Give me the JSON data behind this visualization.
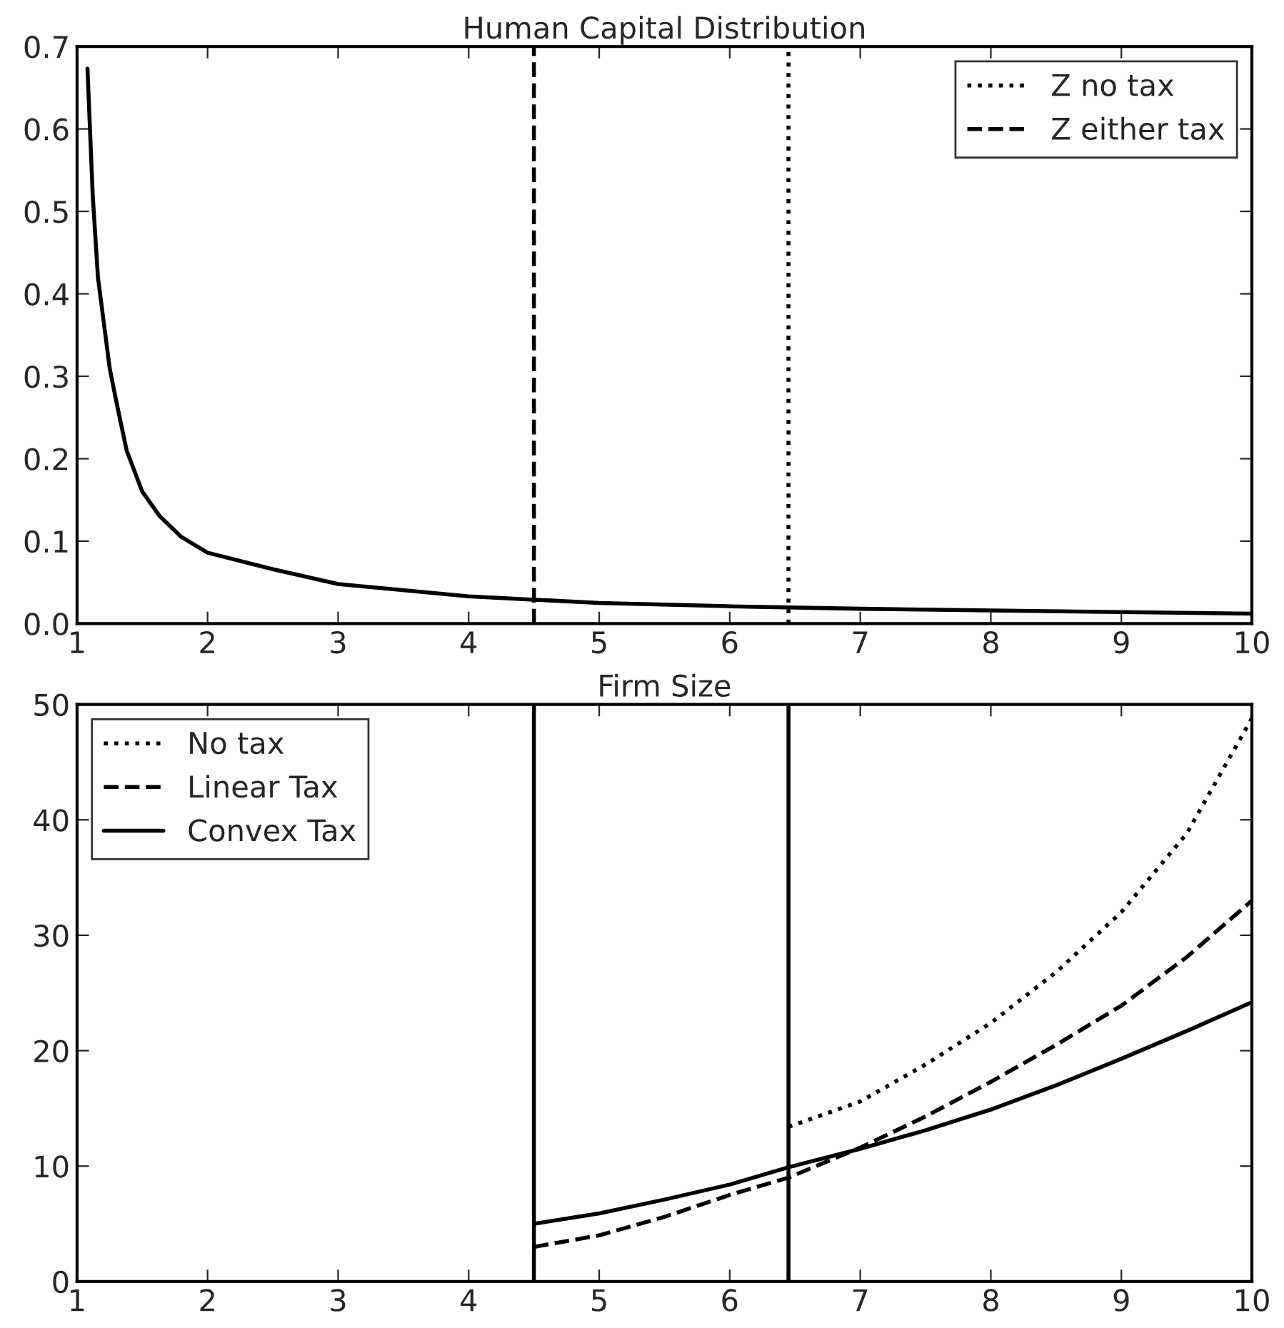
{
  "chart_data": [
    {
      "type": "line",
      "title": "Human Capital Distribution",
      "xlim": [
        1,
        10
      ],
      "ylim": [
        0,
        0.7
      ],
      "xticks": [
        1,
        2,
        3,
        4,
        5,
        6,
        7,
        8,
        9,
        10
      ],
      "yticks": [
        {
          "value": 0,
          "label": "0.0"
        },
        0.1,
        0.2,
        0.3,
        0.4,
        0.5,
        0.6,
        0.7
      ],
      "grid": false,
      "legend": "top right",
      "series": [
        {
          "color": "#000000",
          "line_style": "solid",
          "x": [
            1.08,
            1.12,
            1.16,
            1.25,
            1.3,
            1.38,
            1.5,
            1.63,
            1.8,
            2,
            2.5,
            3,
            4,
            4.5,
            5,
            6,
            7,
            8,
            9,
            10
          ],
          "values": [
            0.673,
            0.52,
            0.42,
            0.31,
            0.27,
            0.21,
            0.16,
            0.131,
            0.105,
            0.086,
            0.066,
            0.048,
            0.033,
            0.029,
            0.025,
            0.021,
            0.018,
            0.016,
            0.014,
            0.012
          ]
        },
        {
          "name": "Z no tax",
          "color": "#000000",
          "line_style": "dotted",
          "x": [
            6.45,
            6.45
          ],
          "values": [
            0,
            0.7
          ]
        },
        {
          "name": "Z either tax",
          "color": "#000000",
          "line_style": "dashed",
          "x": [
            4.5,
            4.5
          ],
          "values": [
            0,
            0.7
          ]
        }
      ]
    },
    {
      "type": "line",
      "title": "Firm Size",
      "xlim": [
        1,
        10
      ],
      "ylim": [
        0,
        50
      ],
      "xticks": [
        1,
        2,
        3,
        4,
        5,
        6,
        7,
        8,
        9,
        10
      ],
      "yticks": [
        0,
        10,
        20,
        30,
        40,
        50
      ],
      "grid": false,
      "legend": "top left",
      "series": [
        {
          "name": "No tax",
          "color": "#000000",
          "line_style": "dotted",
          "x": [
            6.45,
            7,
            7.5,
            8,
            8.5,
            9,
            9.5,
            10
          ],
          "values": [
            13.4,
            15.6,
            18.8,
            22.4,
            26.8,
            32,
            38.8,
            48.8
          ]
        },
        {
          "name": "Linear Tax",
          "color": "#000000",
          "line_style": "dashed",
          "x": [
            4.5,
            5,
            5.5,
            6,
            6.45,
            7,
            7.5,
            8,
            8.5,
            9,
            9.5,
            10
          ],
          "values": [
            3,
            4.0,
            5.6,
            7.5,
            9.0,
            11.6,
            14.3,
            17.3,
            20.5,
            23.9,
            28.1,
            33
          ]
        },
        {
          "name": "Convex Tax",
          "color": "#000000",
          "line_style": "solid",
          "x": [
            4.5,
            5,
            5.5,
            6,
            6.45,
            7,
            7.5,
            8,
            8.5,
            9,
            9.5,
            10
          ],
          "values": [
            5,
            5.9,
            7.1,
            8.4,
            9.9,
            11.5,
            13.1,
            14.9,
            17.0,
            19.3,
            21.7,
            24.2
          ]
        }
      ],
      "ref_lines": [
        {
          "axis": "x",
          "value": 4.5,
          "color": "#000000",
          "line_style": "solid"
        },
        {
          "axis": "x",
          "value": 6.45,
          "color": "#000000",
          "line_style": "solid"
        }
      ]
    }
  ]
}
